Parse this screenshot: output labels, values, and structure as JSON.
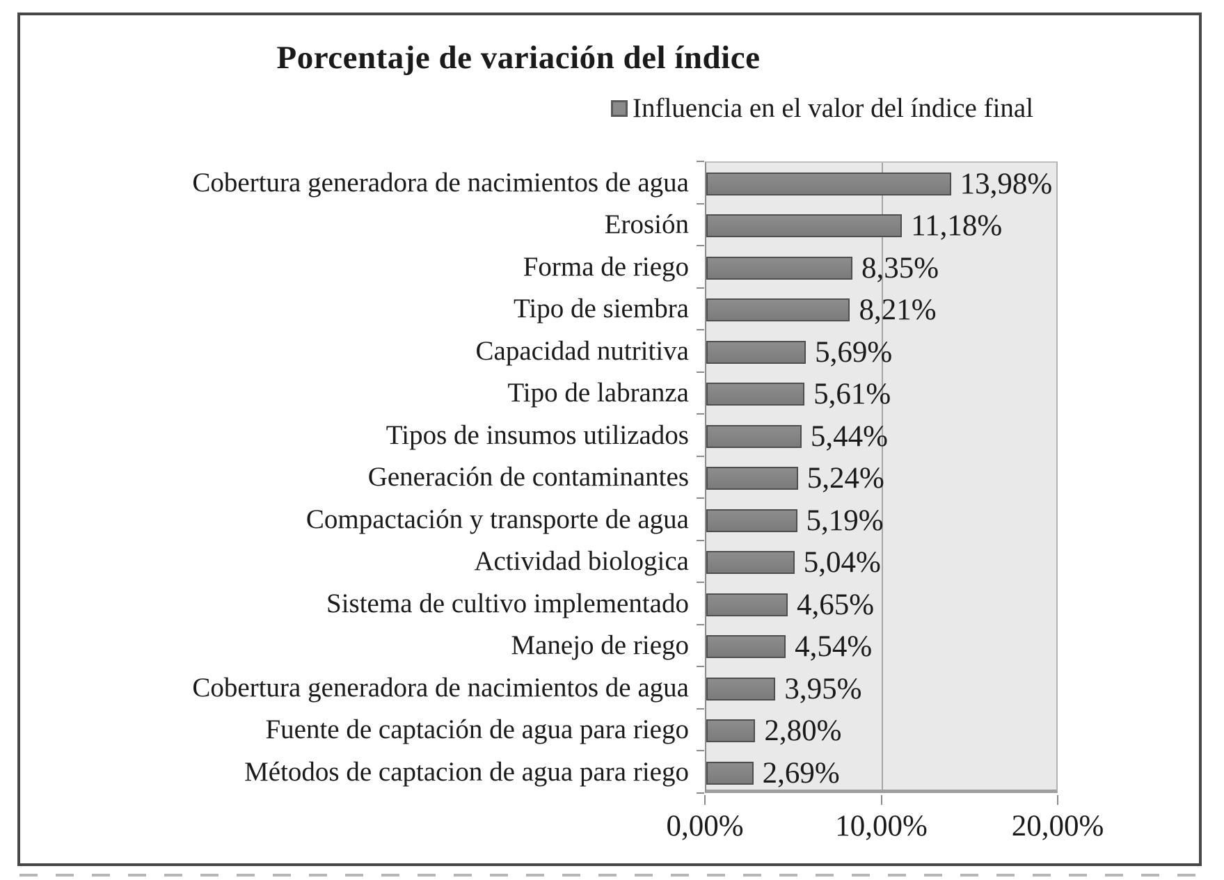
{
  "title": "Porcentaje de variación del índice",
  "legend": {
    "label": "Influencia en el valor del índice final",
    "marker_color": "#8b8b8b"
  },
  "chart_data": {
    "type": "bar",
    "orientation": "horizontal",
    "title": "Porcentaje de variación del índice",
    "legend_entries": [
      "Influencia en el valor del índice final"
    ],
    "legend_position": "top-right",
    "categories": [
      "Cobertura generadora de nacimientos de agua",
      "Erosión",
      "Forma de riego",
      "Tipo de siembra",
      "Capacidad nutritiva",
      "Tipo de labranza",
      "Tipos de insumos utilizados",
      "Generación de contaminantes",
      "Compactación y transporte de agua",
      "Actividad biologica",
      "Sistema de cultivo implementado",
      "Manejo de riego",
      "Cobertura generadora de nacimientos de agua",
      "Fuente de captación de agua para riego",
      "Métodos de captacion de agua para riego"
    ],
    "values": [
      13.98,
      11.18,
      8.35,
      8.21,
      5.69,
      5.61,
      5.44,
      5.24,
      5.19,
      5.04,
      4.65,
      4.54,
      3.95,
      2.8,
      2.69
    ],
    "value_labels": [
      "13,98%",
      "11,18%",
      "8,35%",
      "8,21%",
      "5,69%",
      "5,61%",
      "5,44%",
      "5,24%",
      "5,19%",
      "5,04%",
      "4,65%",
      "4,54%",
      "3,95%",
      "2,80%",
      "2,69%"
    ],
    "xlabel": "",
    "ylabel": "",
    "xlim": [
      0,
      20
    ],
    "x_tick_values": [
      0,
      10,
      20
    ],
    "x_tick_labels": [
      "0,00%",
      "10,00%",
      "20,00%"
    ],
    "gridlines": "vertical at 10%",
    "grid_on": true,
    "colors": {
      "bar_fill": "#7f7f7f",
      "bar_border": "#4e4e4e",
      "plot_background": "#e9e9e9",
      "gridline": "#a5a5a5",
      "axis_line": "#8b8b8b",
      "frame_border": "#474747",
      "text": "#1a1a1a"
    }
  }
}
